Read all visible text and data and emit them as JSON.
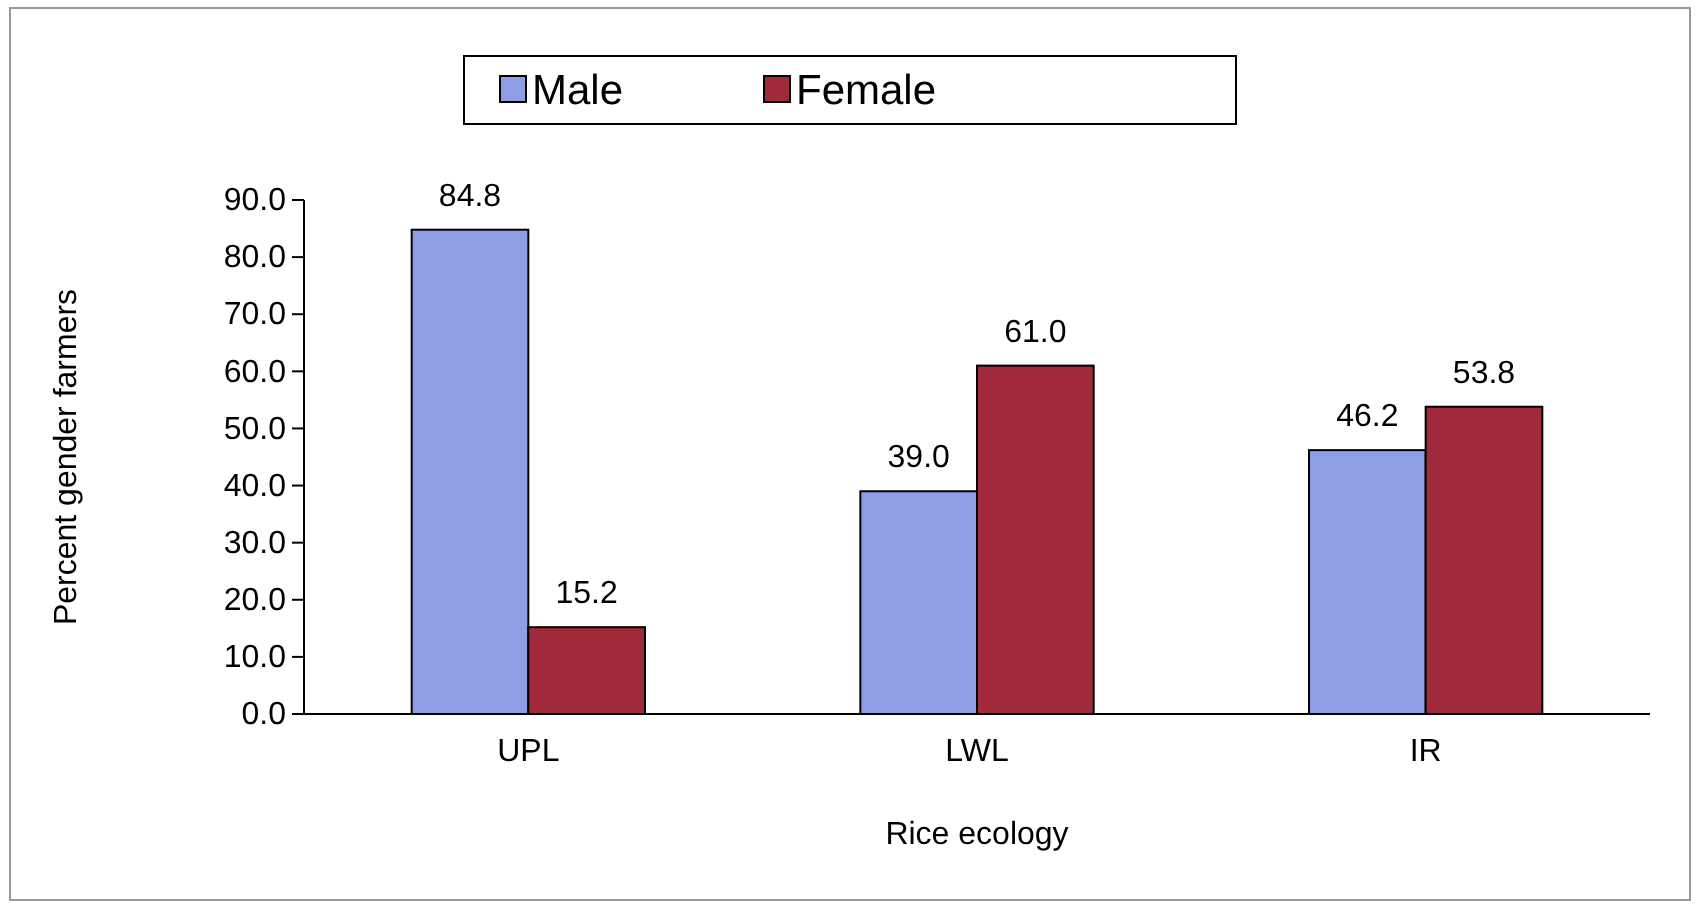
{
  "chart_data": {
    "type": "bar",
    "xlabel": "Rice ecology",
    "ylabel": "Percent gender farmers",
    "categories": [
      "UPL",
      "LWL",
      "IR"
    ],
    "series": [
      {
        "name": "Male",
        "color": "#8e9ee4",
        "values": [
          84.8,
          39.0,
          46.2
        ]
      },
      {
        "name": "Female",
        "color": "#a02a3c",
        "values": [
          15.2,
          61.0,
          53.8
        ]
      }
    ],
    "ylim": [
      0,
      90
    ],
    "yticks": [
      {
        "value": 0,
        "label": "0.0"
      },
      {
        "value": 10,
        "label": "10.0"
      },
      {
        "value": 20,
        "label": "20.0"
      },
      {
        "value": 30,
        "label": "30.0"
      },
      {
        "value": 40,
        "label": "40.0"
      },
      {
        "value": 50,
        "label": "50.0"
      },
      {
        "value": 60,
        "label": "60.0"
      },
      {
        "value": 70,
        "label": "70.0"
      },
      {
        "value": 80,
        "label": "80.0"
      },
      {
        "value": 90,
        "label": "90.0"
      }
    ],
    "value_labels": [
      [
        "84.8",
        "39.0",
        "46.2"
      ],
      [
        "15.2",
        "61.0",
        "53.8"
      ]
    ],
    "legend": "top",
    "grid": false
  }
}
